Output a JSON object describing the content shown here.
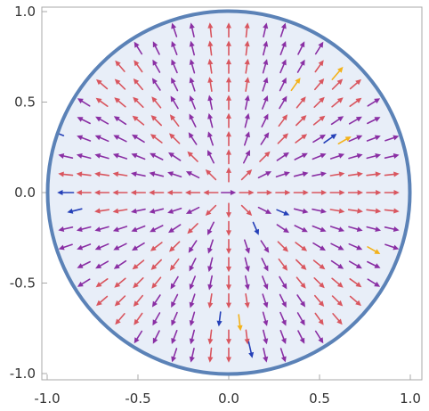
{
  "chart_data": {
    "type": "vector field (stream/arrow plot) on a unit disk",
    "title": "",
    "xlabel": "",
    "ylabel": "",
    "xlim": [
      -1.0,
      1.0
    ],
    "ylim": [
      -1.0,
      1.0
    ],
    "grid": false,
    "frame": true,
    "region": {
      "shape": "disk",
      "center": [
        0,
        0
      ],
      "radius": 1.0
    },
    "x_ticks": [
      "-1.0",
      "-0.5",
      "0.0",
      "0.5",
      "1.0"
    ],
    "y_ticks": [
      "1.0",
      "0.5",
      "0.0",
      "-0.5",
      "-1.0"
    ],
    "vector_field": {
      "sampling": "grid",
      "grid_step": 0.1,
      "default_direction": "radially outward from the origin",
      "arrow_length": 0.08,
      "color_meaning": "arrow color encodes local magnitude",
      "palette": {
        "high": "#d9565f",
        "mid": "#8a2fa4",
        "low": "#2540b8",
        "highlight": "#f3b21b"
      }
    },
    "special_vectors": [
      {
        "x": -0.95,
        "y": 0.33,
        "dx": -0.08,
        "dy": 0.03,
        "color": "low"
      },
      {
        "x": -0.9,
        "y": 0.0,
        "dx": -0.09,
        "dy": 0.0,
        "color": "low"
      },
      {
        "x": -0.85,
        "y": -0.1,
        "dx": -0.08,
        "dy": -0.02,
        "color": "low"
      },
      {
        "x": 0.37,
        "y": 0.6,
        "dx": 0.05,
        "dy": 0.07,
        "color": "highlight"
      },
      {
        "x": 0.6,
        "y": 0.66,
        "dx": 0.06,
        "dy": 0.07,
        "color": "highlight"
      },
      {
        "x": 0.56,
        "y": 0.3,
        "dx": 0.07,
        "dy": 0.05,
        "color": "low"
      },
      {
        "x": 0.64,
        "y": 0.29,
        "dx": 0.07,
        "dy": 0.04,
        "color": "highlight"
      },
      {
        "x": 0.3,
        "y": -0.11,
        "dx": 0.07,
        "dy": -0.03,
        "color": "low"
      },
      {
        "x": 0.15,
        "y": -0.2,
        "dx": 0.03,
        "dy": -0.07,
        "color": "low"
      },
      {
        "x": 0.8,
        "y": -0.32,
        "dx": 0.07,
        "dy": -0.04,
        "color": "highlight"
      },
      {
        "x": -0.05,
        "y": -0.7,
        "dx": -0.01,
        "dy": -0.08,
        "color": "low"
      },
      {
        "x": 0.06,
        "y": -0.72,
        "dx": 0.01,
        "dy": -0.09,
        "color": "highlight"
      },
      {
        "x": 0.12,
        "y": -0.87,
        "dx": 0.02,
        "dy": -0.09,
        "color": "low"
      }
    ]
  }
}
